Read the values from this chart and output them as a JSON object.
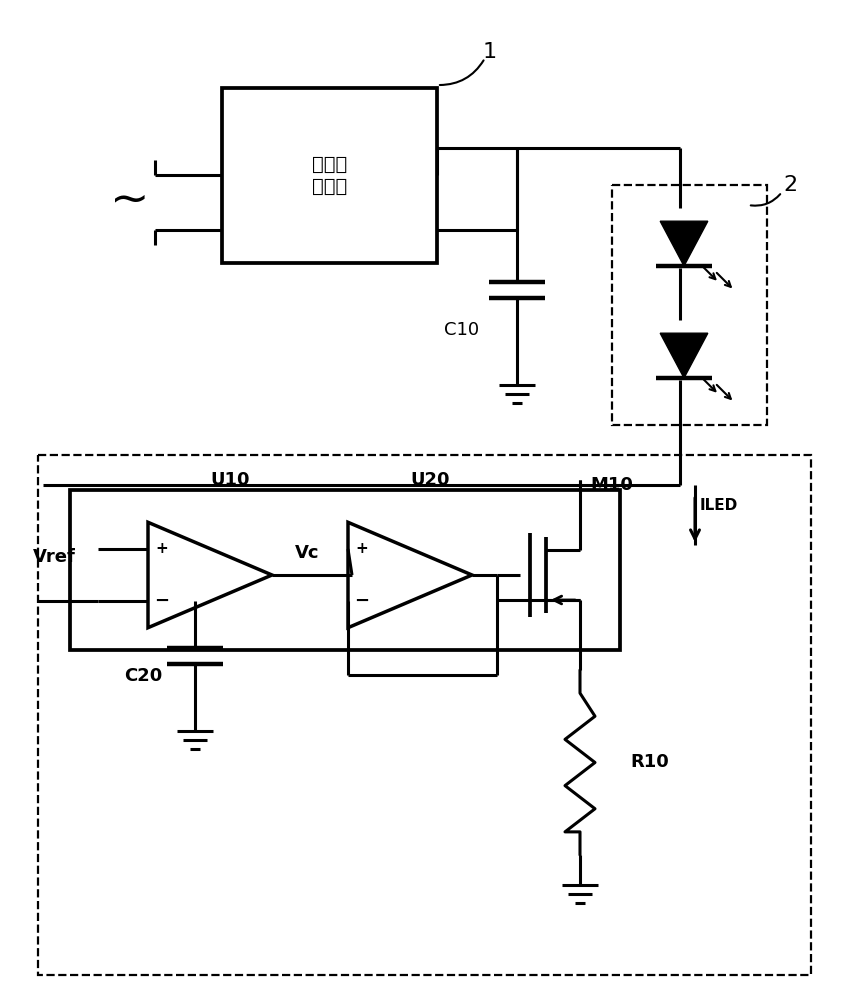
{
  "fig_width": 8.49,
  "fig_height": 10.0,
  "bg_color": "#ffffff",
  "line_color": "#000000",
  "lw": 2.2,
  "dlw": 1.6,
  "box1_label": "恒流驱\n动电路",
  "label1": "1",
  "label2": "2",
  "C10_label": "C10",
  "C20_label": "C20",
  "U10_label": "U10",
  "U20_label": "U20",
  "M10_label": "M10",
  "R10_label": "R10",
  "Vref_label": "Vref",
  "Vc_label": "Vc",
  "ILED_label": "ILED"
}
